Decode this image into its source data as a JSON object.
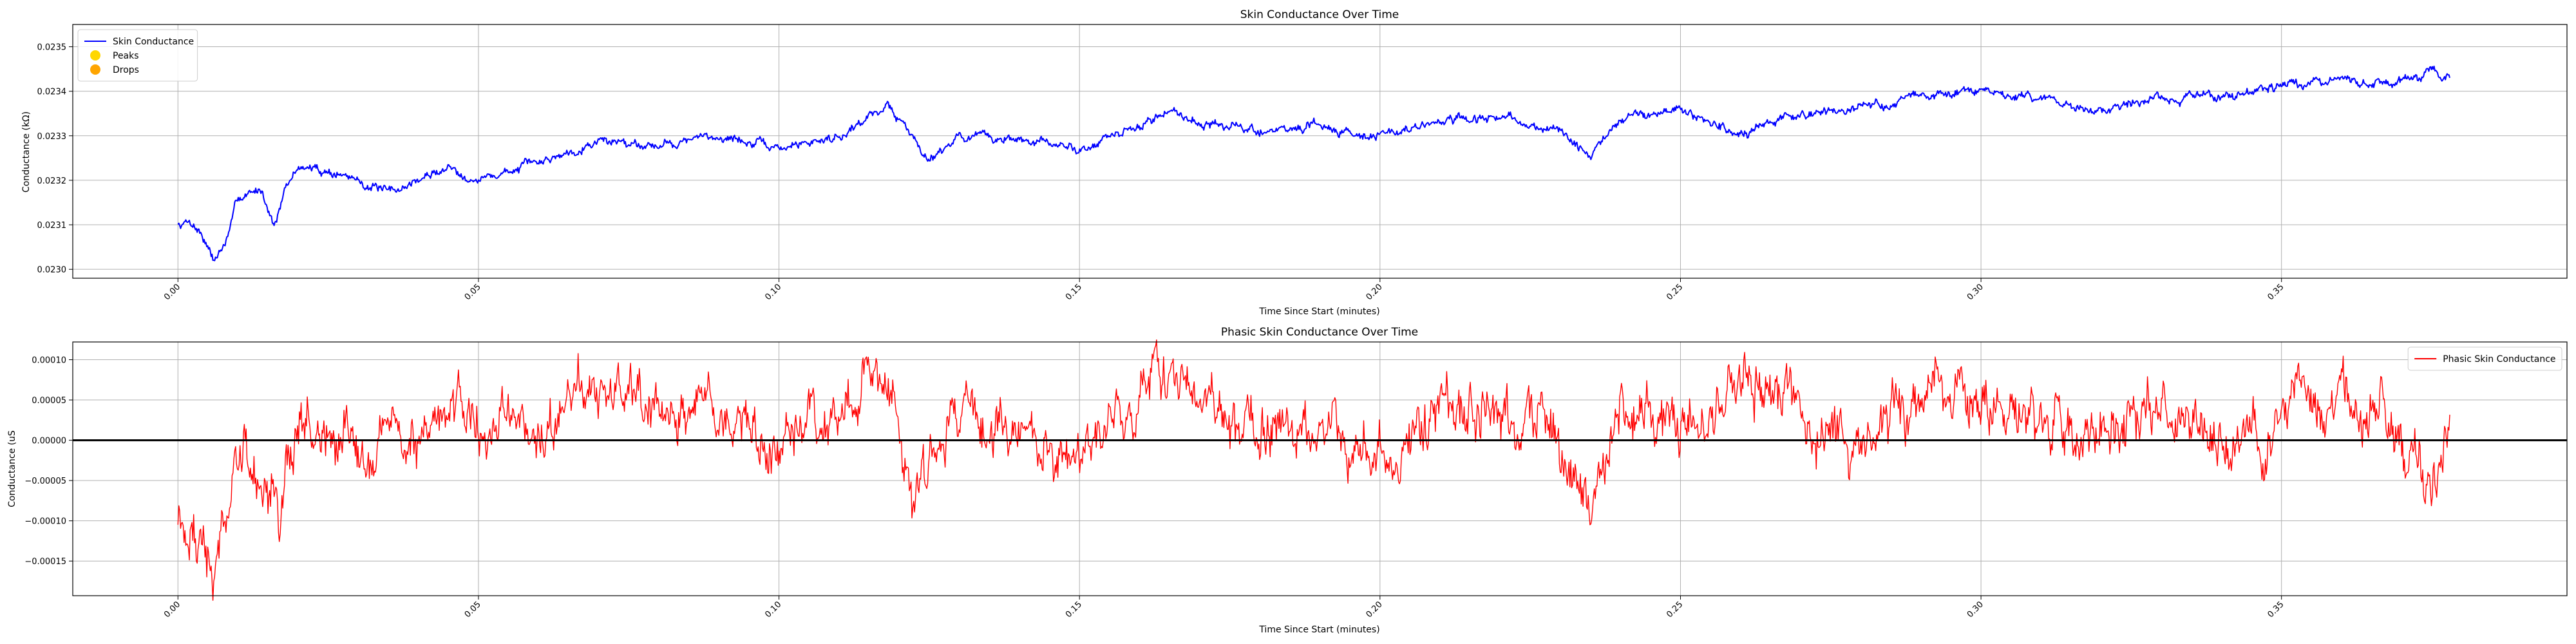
{
  "chart_data": [
    {
      "type": "line",
      "title": "Skin Conductance Over Time",
      "xlabel": "Time Since Start (minutes)",
      "ylabel": "Conductance (kΩ)",
      "xlim": [
        -0.0175,
        0.3975
      ],
      "ylim": [
        0.02298,
        0.02355
      ],
      "xticks": [
        0.0,
        0.05,
        0.1,
        0.15,
        0.2,
        0.25,
        0.3,
        0.35
      ],
      "xtick_labels": [
        "0.00",
        "0.05",
        "0.10",
        "0.15",
        "0.20",
        "0.25",
        "0.30",
        "0.35"
      ],
      "yticks": [
        0.023,
        0.0231,
        0.0232,
        0.0233,
        0.0234,
        0.0235
      ],
      "ytick_labels": [
        "0.0230",
        "0.0231",
        "0.0232",
        "0.0233",
        "0.0234",
        "0.0235"
      ],
      "grid": true,
      "legend_position": "top-left",
      "legend": [
        {
          "label": "Skin Conductance",
          "kind": "line",
          "color": "#0000ff"
        },
        {
          "label": "Peaks",
          "kind": "marker",
          "color": "#ffd700"
        },
        {
          "label": "Drops",
          "kind": "marker",
          "color": "#ffa500"
        }
      ],
      "series": [
        {
          "name": "Skin Conductance",
          "color": "#0000ff",
          "x": [
            0.0,
            0.002,
            0.004,
            0.006,
            0.008,
            0.01,
            0.012,
            0.014,
            0.016,
            0.018,
            0.02,
            0.025,
            0.03,
            0.035,
            0.04,
            0.045,
            0.05,
            0.06,
            0.07,
            0.08,
            0.09,
            0.1,
            0.11,
            0.118,
            0.125,
            0.13,
            0.14,
            0.15,
            0.16,
            0.165,
            0.17,
            0.18,
            0.19,
            0.2,
            0.21,
            0.22,
            0.23,
            0.235,
            0.24,
            0.25,
            0.26,
            0.27,
            0.28,
            0.29,
            0.3,
            0.31,
            0.32,
            0.33,
            0.34,
            0.35,
            0.36,
            0.37,
            0.375,
            0.378
          ],
          "values": [
            0.0231,
            0.02311,
            0.02308,
            0.02302,
            0.02306,
            0.02316,
            0.02317,
            0.02318,
            0.0231,
            0.02318,
            0.02323,
            0.02322,
            0.0232,
            0.02317,
            0.0232,
            0.02323,
            0.0232,
            0.02324,
            0.02329,
            0.02328,
            0.0233,
            0.02327,
            0.0233,
            0.02337,
            0.02325,
            0.0233,
            0.02329,
            0.02327,
            0.02332,
            0.02336,
            0.02333,
            0.02331,
            0.02332,
            0.0233,
            0.02333,
            0.02334,
            0.02331,
            0.02325,
            0.02334,
            0.02336,
            0.0233,
            0.02335,
            0.02336,
            0.02339,
            0.0234,
            0.02338,
            0.02336,
            0.02338,
            0.02339,
            0.02341,
            0.02342,
            0.02342,
            0.02345,
            0.02343
          ]
        }
      ]
    },
    {
      "type": "line",
      "title": "Phasic Skin Conductance Over Time",
      "xlabel": "Time Since Start (minutes)",
      "ylabel": "Conductance (uS",
      "xlim": [
        -0.0175,
        0.3975
      ],
      "ylim": [
        -0.000193,
        0.000122
      ],
      "xticks": [
        0.0,
        0.05,
        0.1,
        0.15,
        0.2,
        0.25,
        0.3,
        0.35
      ],
      "xtick_labels": [
        "0.00",
        "0.05",
        "0.10",
        "0.15",
        "0.20",
        "0.25",
        "0.30",
        "0.35"
      ],
      "yticks": [
        -0.00015,
        -0.0001,
        -5e-05,
        0.0,
        5e-05,
        0.0001
      ],
      "ytick_labels": [
        "−0.00015",
        "−0.00010",
        "−0.00005",
        "0.00000",
        "0.00005",
        "0.00010"
      ],
      "grid": true,
      "legend_position": "top-right",
      "legend": [
        {
          "label": "Phasic Skin Conductance",
          "kind": "line",
          "color": "#ff0000"
        }
      ],
      "reference_line": {
        "y": 0.0,
        "color": "#000000"
      },
      "series": [
        {
          "name": "Phasic Skin Conductance",
          "color": "#ff0000",
          "x": [
            0.0,
            0.003,
            0.006,
            0.008,
            0.01,
            0.014,
            0.017,
            0.02,
            0.025,
            0.03,
            0.035,
            0.04,
            0.045,
            0.05,
            0.06,
            0.07,
            0.08,
            0.09,
            0.1,
            0.11,
            0.118,
            0.122,
            0.125,
            0.13,
            0.14,
            0.15,
            0.16,
            0.165,
            0.17,
            0.18,
            0.19,
            0.2,
            0.21,
            0.22,
            0.23,
            0.235,
            0.24,
            0.25,
            0.26,
            0.27,
            0.28,
            0.29,
            0.3,
            0.31,
            0.32,
            0.33,
            0.34,
            0.35,
            0.36,
            0.37,
            0.375,
            0.378
          ],
          "values": [
            -8e-05,
            -0.00012,
            -0.00017,
            -8e-05,
            -3e-05,
            -5e-05,
            -0.0001,
            3e-05,
            0.0,
            -2e-05,
            3e-05,
            0.0,
            5e-05,
            2e-05,
            1e-05,
            6e-05,
            2e-05,
            5e-05,
            -3e-05,
            4e-05,
            0.0001,
            -6e-05,
            -2e-05,
            4e-05,
            1e-05,
            -4e-05,
            6e-05,
            9e-05,
            3e-05,
            1e-05,
            2e-05,
            -3e-05,
            4e-05,
            3e-05,
            1e-05,
            -7e-05,
            5e-05,
            2e-05,
            8e-05,
            4e-05,
            0.0,
            6e-05,
            5e-05,
            3e-05,
            1e-05,
            4e-05,
            0.0,
            2e-05,
            5e-05,
            2e-05,
            -4e-05,
            2e-05
          ]
        }
      ]
    }
  ]
}
